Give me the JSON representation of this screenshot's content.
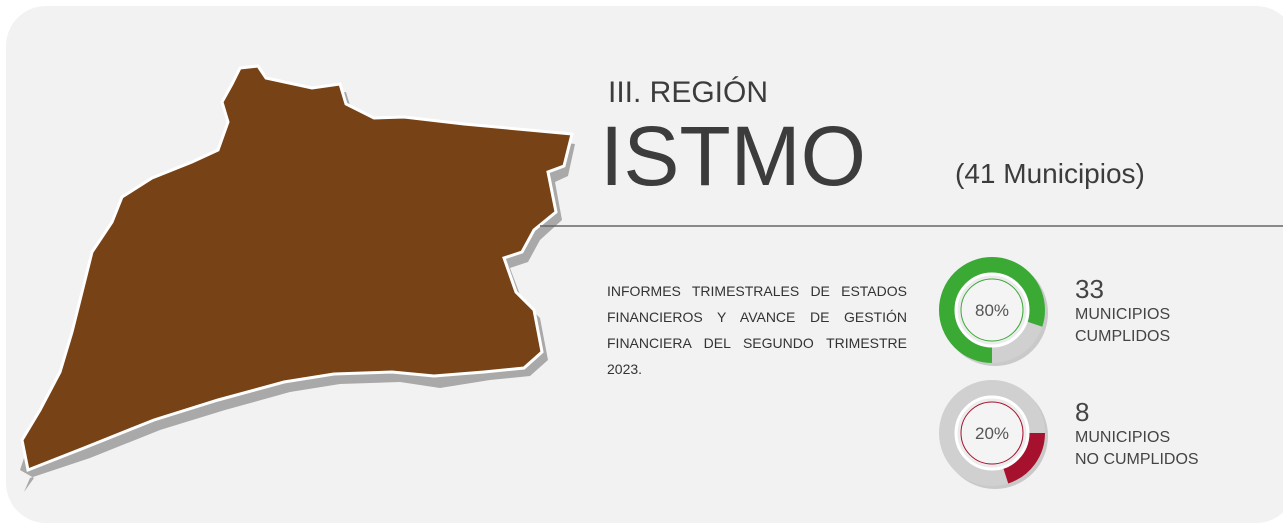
{
  "header": {
    "region": "III. REGIÓN",
    "name": "ISTMO",
    "count": "(41 Municipios)"
  },
  "description": "INFORMES TRIMESTRALES DE ESTADOS FINANCIEROS Y AVANCE DE GESTIÓN FINANCIERA DEL SEGUNDO TRIMESTRE 2023.",
  "gauges": [
    {
      "value": 80,
      "label": "80%",
      "number": "33",
      "caption": [
        "MUNICIPIOS",
        "CUMPLIDOS"
      ],
      "color": "#3aaa35"
    },
    {
      "value": 20,
      "label": "20%",
      "number": "8",
      "caption": [
        "MUNICIPIOS",
        "NO CUMPLIDOS"
      ],
      "color": "#a6122e"
    }
  ]
}
